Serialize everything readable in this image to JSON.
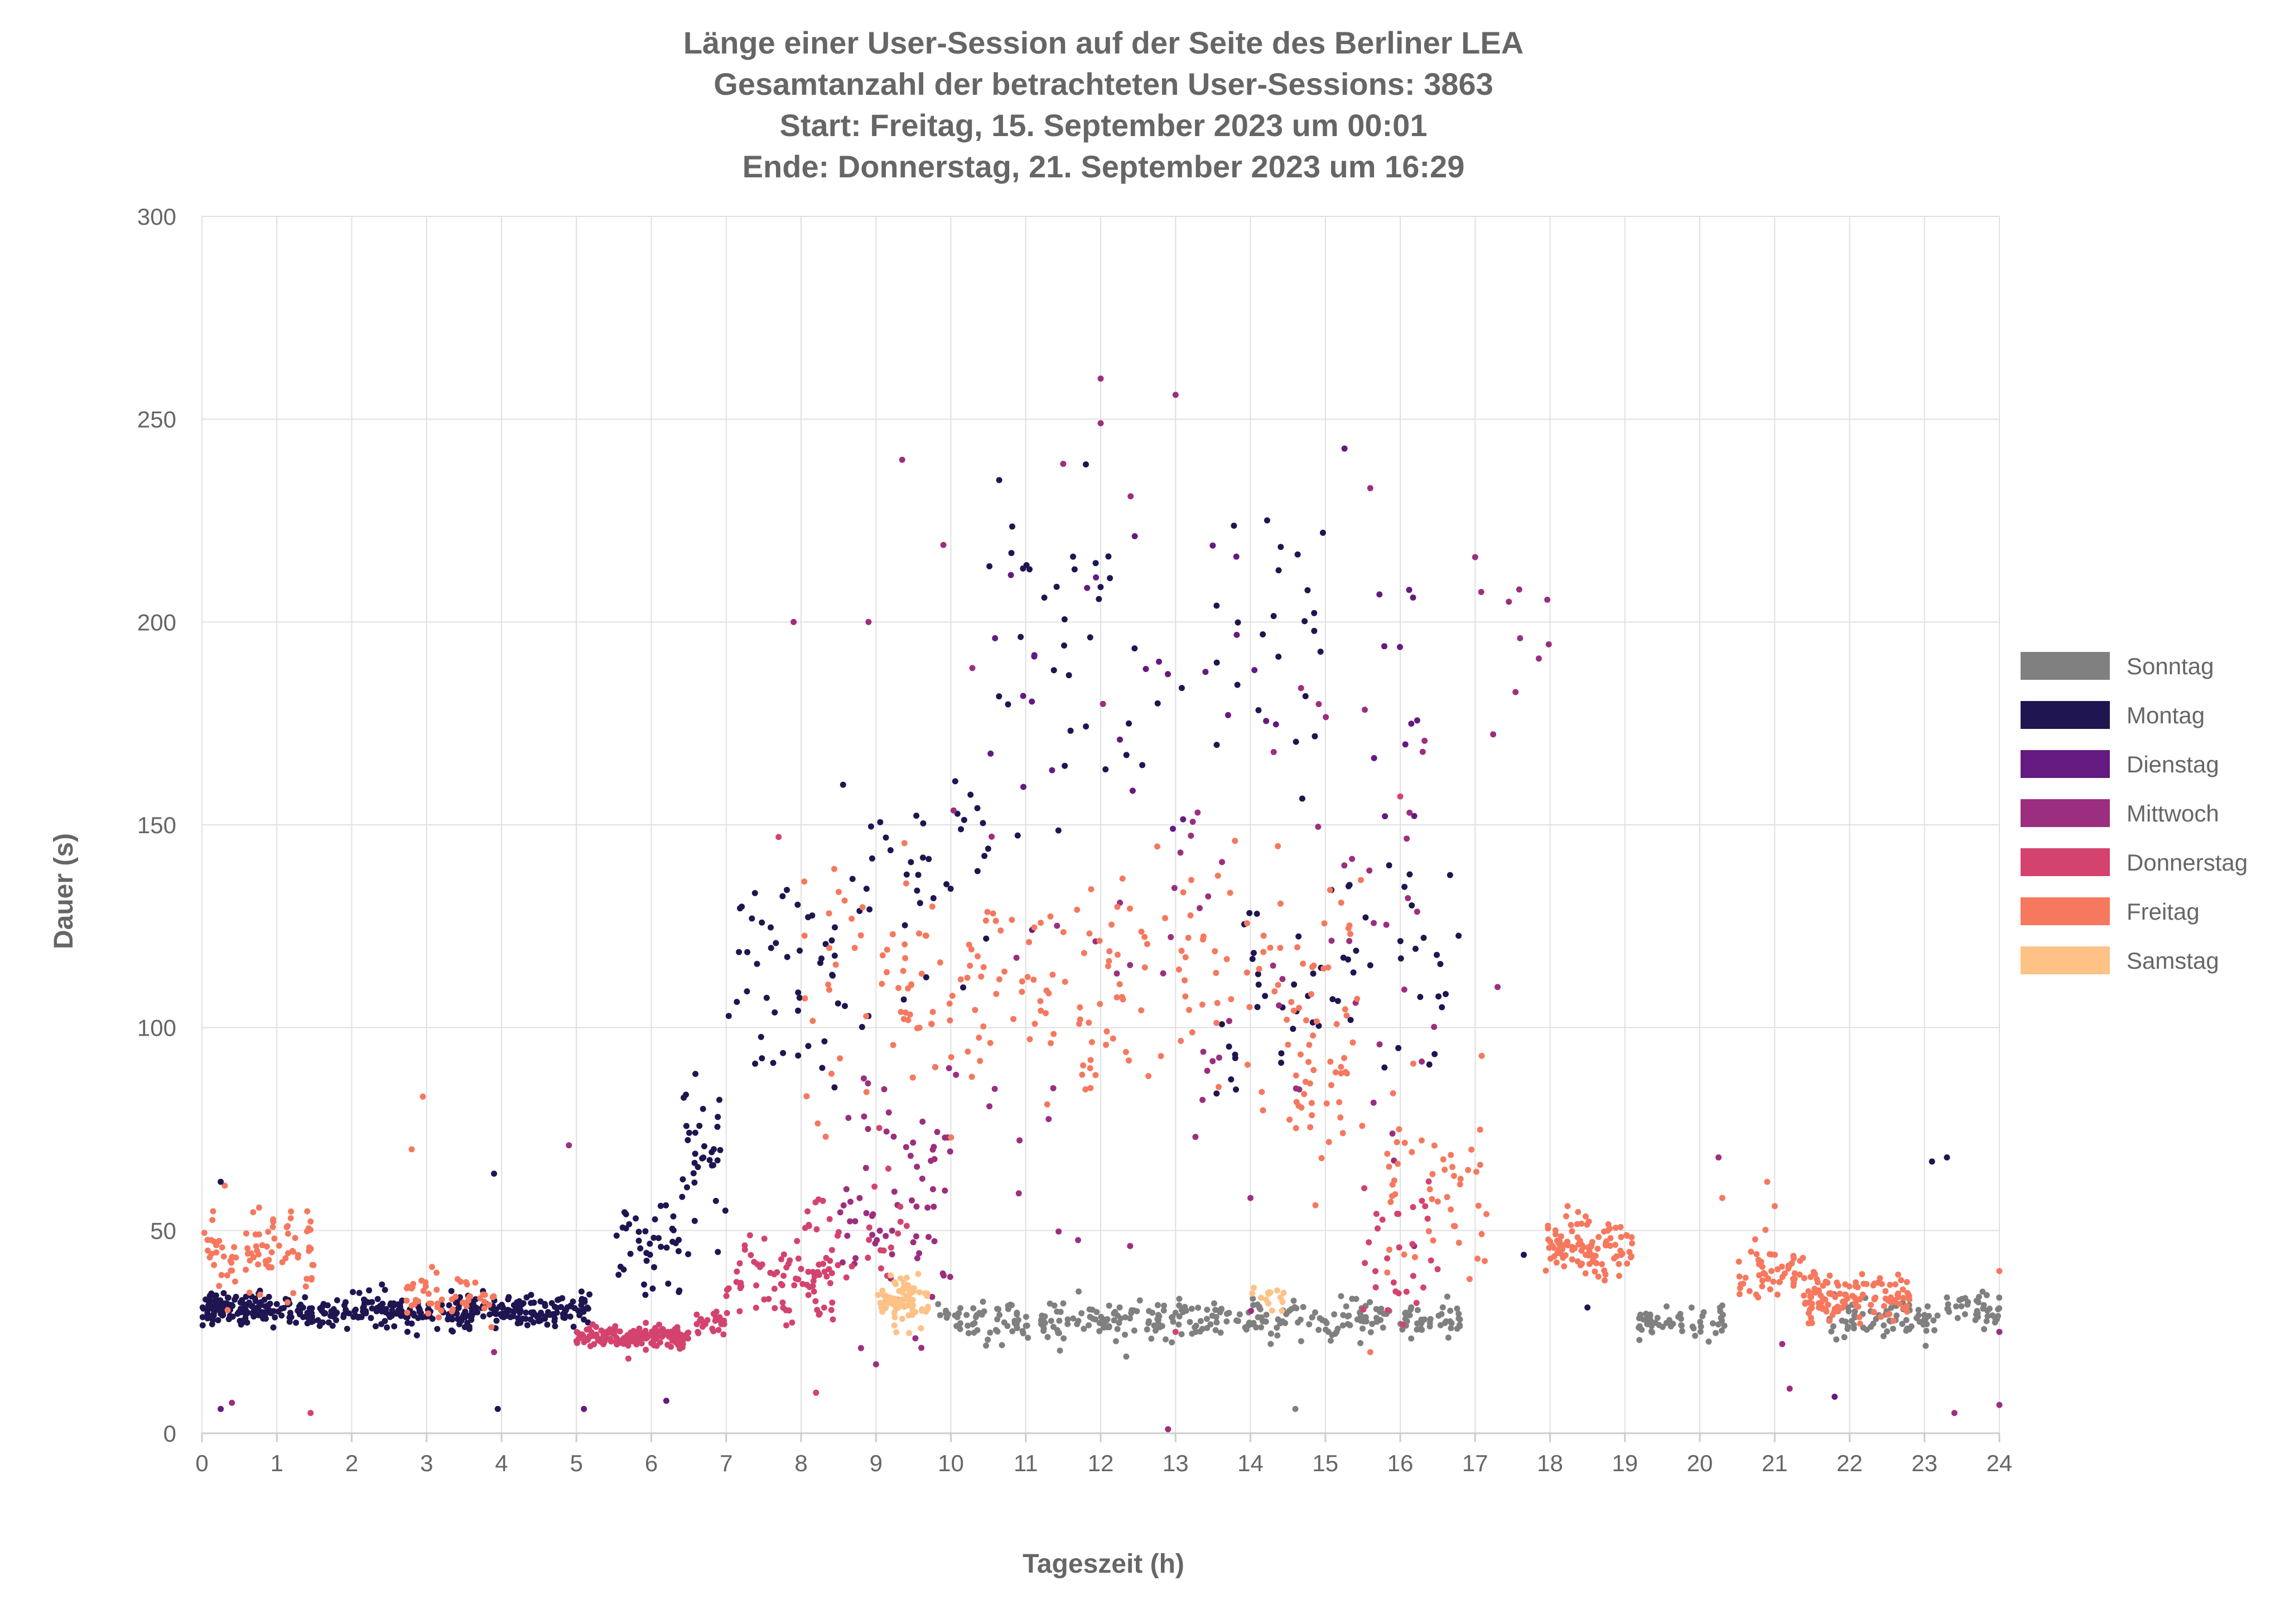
{
  "chart_data": {
    "type": "scatter",
    "title": [
      "Länge einer User-Session auf der Seite des Berliner LEA",
      "Gesamtanzahl der betrachteten User-Sessions: 3863",
      "Start: Freitag, 15. September 2023 um 00:01",
      "Ende: Donnerstag, 21. September 2023 um 16:29"
    ],
    "xlabel": "Tageszeit (h)",
    "ylabel": "Dauer (s)",
    "xlim": [
      0,
      24
    ],
    "ylim": [
      0,
      300
    ],
    "x_ticks": [
      "0",
      "1",
      "2",
      "3",
      "4",
      "5",
      "6",
      "7",
      "8",
      "9",
      "10",
      "11",
      "12",
      "13",
      "14",
      "15",
      "16",
      "17",
      "18",
      "19",
      "20",
      "21",
      "22",
      "23",
      "24"
    ],
    "y_ticks": [
      "0",
      "50",
      "100",
      "150",
      "200",
      "250",
      "300"
    ],
    "grid": true,
    "legend_position": "right",
    "legend": [
      {
        "name": "Sonntag",
        "color": "#808080"
      },
      {
        "name": "Montag",
        "color": "#1f1550"
      },
      {
        "name": "Dienstag",
        "color": "#641a80"
      },
      {
        "name": "Mittwoch",
        "color": "#9c2e7f"
      },
      {
        "name": "Donnerstag",
        "color": "#d3436e"
      },
      {
        "name": "Freitag",
        "color": "#f6785e"
      },
      {
        "name": "Samstag",
        "color": "#fec287"
      }
    ],
    "series": [
      {
        "name": "Sonntag",
        "color": "#808080",
        "clusters": [
          {
            "x": [
              9.8,
              16.8
            ],
            "y": 28,
            "spread": 2.5,
            "n": 330
          },
          {
            "x": [
              19.1,
              20.4
            ],
            "y": 28,
            "spread": 2.5,
            "n": 55
          },
          {
            "x": [
              21.7,
              23.2
            ],
            "y": 28.5,
            "spread": 2.5,
            "n": 70
          },
          {
            "x": [
              23.2,
              24.0
            ],
            "y": 30,
            "spread": 2,
            "n": 40
          }
        ]
      },
      {
        "name": "Montag",
        "color": "#1f1550",
        "clusters": [
          {
            "x": [
              0.0,
              1.0
            ],
            "y": 30.5,
            "spread": 2,
            "n": 130
          },
          {
            "x": [
              1.0,
              5.2
            ],
            "y": 30,
            "spread": 2,
            "n": 330
          },
          {
            "x": [
              5.5,
              6.4
            ],
            "y": 45,
            "spread": 7,
            "n": 40
          },
          {
            "x": [
              6.4,
              7.0
            ],
            "y": 68,
            "spread": 8,
            "n": 35
          },
          {
            "x": [
              7.0,
              8.5
            ],
            "y": 115,
            "spread": 15,
            "n": 45
          },
          {
            "x": [
              8.5,
              10.5
            ],
            "y": 140,
            "spread": 15,
            "n": 40
          },
          {
            "x": [
              10.5,
              15.0
            ],
            "y": 190,
            "spread": 25,
            "n": 60
          },
          {
            "x": [
              13.5,
              16.8
            ],
            "y": 110,
            "spread": 15,
            "n": 60
          }
        ]
      },
      {
        "name": "Dienstag",
        "color": "#641a80",
        "clusters": [
          {
            "x": [
              10.5,
              16.5
            ],
            "y": 185,
            "spread": 30,
            "n": 40
          }
        ]
      },
      {
        "name": "Mittwoch",
        "color": "#9c2e7f",
        "clusters": [
          {
            "x": [
              8.5,
              10.0
            ],
            "y": 60,
            "spread": 15,
            "n": 70
          },
          {
            "x": [
              10.0,
              16.5
            ],
            "y": 110,
            "spread": 40,
            "n": 70
          },
          {
            "x": [
              16.5,
              18.0
            ],
            "y": 195,
            "spread": 12,
            "n": 6
          }
        ]
      },
      {
        "name": "Donnerstag",
        "color": "#d3436e",
        "clusters": [
          {
            "x": [
              5.0,
              6.5
            ],
            "y": 24,
            "spread": 1.5,
            "n": 160
          },
          {
            "x": [
              6.5,
              7.0
            ],
            "y": 27,
            "spread": 2,
            "n": 25
          },
          {
            "x": [
              7.0,
              8.5
            ],
            "y": 38,
            "spread": 6,
            "n": 80
          },
          {
            "x": [
              8.0,
              9.5
            ],
            "y": 50,
            "spread": 10,
            "n": 30
          },
          {
            "x": [
              15.5,
              16.5
            ],
            "y": 45,
            "spread": 10,
            "n": 30
          }
        ]
      },
      {
        "name": "Freitag",
        "color": "#f6785e",
        "clusters": [
          {
            "x": [
              0.0,
              1.5
            ],
            "y": 45,
            "spread": 5,
            "n": 90
          },
          {
            "x": [
              2.7,
              3.9
            ],
            "y": 34,
            "spread": 2.5,
            "n": 50
          },
          {
            "x": [
              8.0,
              15.5
            ],
            "y": 110,
            "spread": 15,
            "n": 220
          },
          {
            "x": [
              14.5,
              15.3
            ],
            "y": 85,
            "spread": 10,
            "n": 30
          },
          {
            "x": [
              15.8,
              17.2
            ],
            "y": 62,
            "spread": 10,
            "n": 50
          },
          {
            "x": [
              17.9,
              19.1
            ],
            "y": 46,
            "spread": 3.5,
            "n": 110
          },
          {
            "x": [
              20.5,
              21.4
            ],
            "y": 40,
            "spread": 4,
            "n": 55
          },
          {
            "x": [
              21.4,
              22.8
            ],
            "y": 33,
            "spread": 3,
            "n": 130
          }
        ]
      },
      {
        "name": "Samstag",
        "color": "#fec287",
        "clusters": [
          {
            "x": [
              9.0,
              9.7
            ],
            "y": 32,
            "spread": 3,
            "n": 80
          },
          {
            "x": [
              14.0,
              14.5
            ],
            "y": 34,
            "spread": 2,
            "n": 15
          }
        ]
      }
    ],
    "outliers": [
      {
        "x": 0.25,
        "y": 62,
        "s": "Montag"
      },
      {
        "x": 0.25,
        "y": 6,
        "s": "Dienstag"
      },
      {
        "x": 0.4,
        "y": 7.5,
        "s": "Mittwoch"
      },
      {
        "x": 1.45,
        "y": 5,
        "s": "Donnerstag"
      },
      {
        "x": 2.8,
        "y": 70,
        "s": "Freitag"
      },
      {
        "x": 2.95,
        "y": 83,
        "s": "Freitag"
      },
      {
        "x": 3.9,
        "y": 64,
        "s": "Montag"
      },
      {
        "x": 3.95,
        "y": 6,
        "s": "Montag"
      },
      {
        "x": 3.9,
        "y": 20,
        "s": "Mittwoch"
      },
      {
        "x": 4.9,
        "y": 71,
        "s": "Mittwoch"
      },
      {
        "x": 5.1,
        "y": 6,
        "s": "Dienstag"
      },
      {
        "x": 6.2,
        "y": 8,
        "s": "Dienstag"
      },
      {
        "x": 7.7,
        "y": 147,
        "s": "Donnerstag"
      },
      {
        "x": 7.9,
        "y": 200,
        "s": "Mittwoch"
      },
      {
        "x": 8.2,
        "y": 10,
        "s": "Donnerstag"
      },
      {
        "x": 8.8,
        "y": 21,
        "s": "Mittwoch"
      },
      {
        "x": 8.9,
        "y": 200,
        "s": "Mittwoch"
      },
      {
        "x": 9.0,
        "y": 17,
        "s": "Mittwoch"
      },
      {
        "x": 9.35,
        "y": 240,
        "s": "Mittwoch"
      },
      {
        "x": 9.9,
        "y": 219,
        "s": "Mittwoch"
      },
      {
        "x": 11.05,
        "y": 213,
        "s": "Montag"
      },
      {
        "x": 11.5,
        "y": 239,
        "s": "Mittwoch"
      },
      {
        "x": 12.0,
        "y": 260,
        "s": "Mittwoch"
      },
      {
        "x": 12.0,
        "y": 249,
        "s": "Mittwoch"
      },
      {
        "x": 12.4,
        "y": 231,
        "s": "Mittwoch"
      },
      {
        "x": 12.9,
        "y": 1,
        "s": "Mittwoch"
      },
      {
        "x": 13.0,
        "y": 256,
        "s": "Mittwoch"
      },
      {
        "x": 13.0,
        "y": 25,
        "s": "Donnerstag"
      },
      {
        "x": 14.0,
        "y": 58,
        "s": "Mittwoch"
      },
      {
        "x": 14.6,
        "y": 6,
        "s": "Sonntag"
      },
      {
        "x": 15.6,
        "y": 233,
        "s": "Mittwoch"
      },
      {
        "x": 15.6,
        "y": 20,
        "s": "Freitag"
      },
      {
        "x": 16.0,
        "y": 157,
        "s": "Donnerstag"
      },
      {
        "x": 16.3,
        "y": 168,
        "s": "Mittwoch"
      },
      {
        "x": 17.0,
        "y": 216,
        "s": "Mittwoch"
      },
      {
        "x": 17.3,
        "y": 110,
        "s": "Mittwoch"
      },
      {
        "x": 17.45,
        "y": 205,
        "s": "Mittwoch"
      },
      {
        "x": 17.6,
        "y": 196,
        "s": "Mittwoch"
      },
      {
        "x": 17.85,
        "y": 191,
        "s": "Mittwoch"
      },
      {
        "x": 17.65,
        "y": 44,
        "s": "Montag"
      },
      {
        "x": 18.5,
        "y": 31,
        "s": "Montag"
      },
      {
        "x": 20.25,
        "y": 68,
        "s": "Mittwoch"
      },
      {
        "x": 20.3,
        "y": 58,
        "s": "Freitag"
      },
      {
        "x": 20.9,
        "y": 62,
        "s": "Freitag"
      },
      {
        "x": 21.0,
        "y": 56,
        "s": "Freitag"
      },
      {
        "x": 21.1,
        "y": 22,
        "s": "Mittwoch"
      },
      {
        "x": 21.2,
        "y": 11,
        "s": "Mittwoch"
      },
      {
        "x": 21.8,
        "y": 9,
        "s": "Dienstag"
      },
      {
        "x": 23.1,
        "y": 67,
        "s": "Montag"
      },
      {
        "x": 23.3,
        "y": 68,
        "s": "Montag"
      },
      {
        "x": 23.4,
        "y": 5,
        "s": "Mittwoch"
      },
      {
        "x": 24.0,
        "y": 40,
        "s": "Freitag"
      },
      {
        "x": 24.0,
        "y": 25,
        "s": "Mittwoch"
      },
      {
        "x": 24.0,
        "y": 7,
        "s": "Mittwoch"
      }
    ]
  }
}
